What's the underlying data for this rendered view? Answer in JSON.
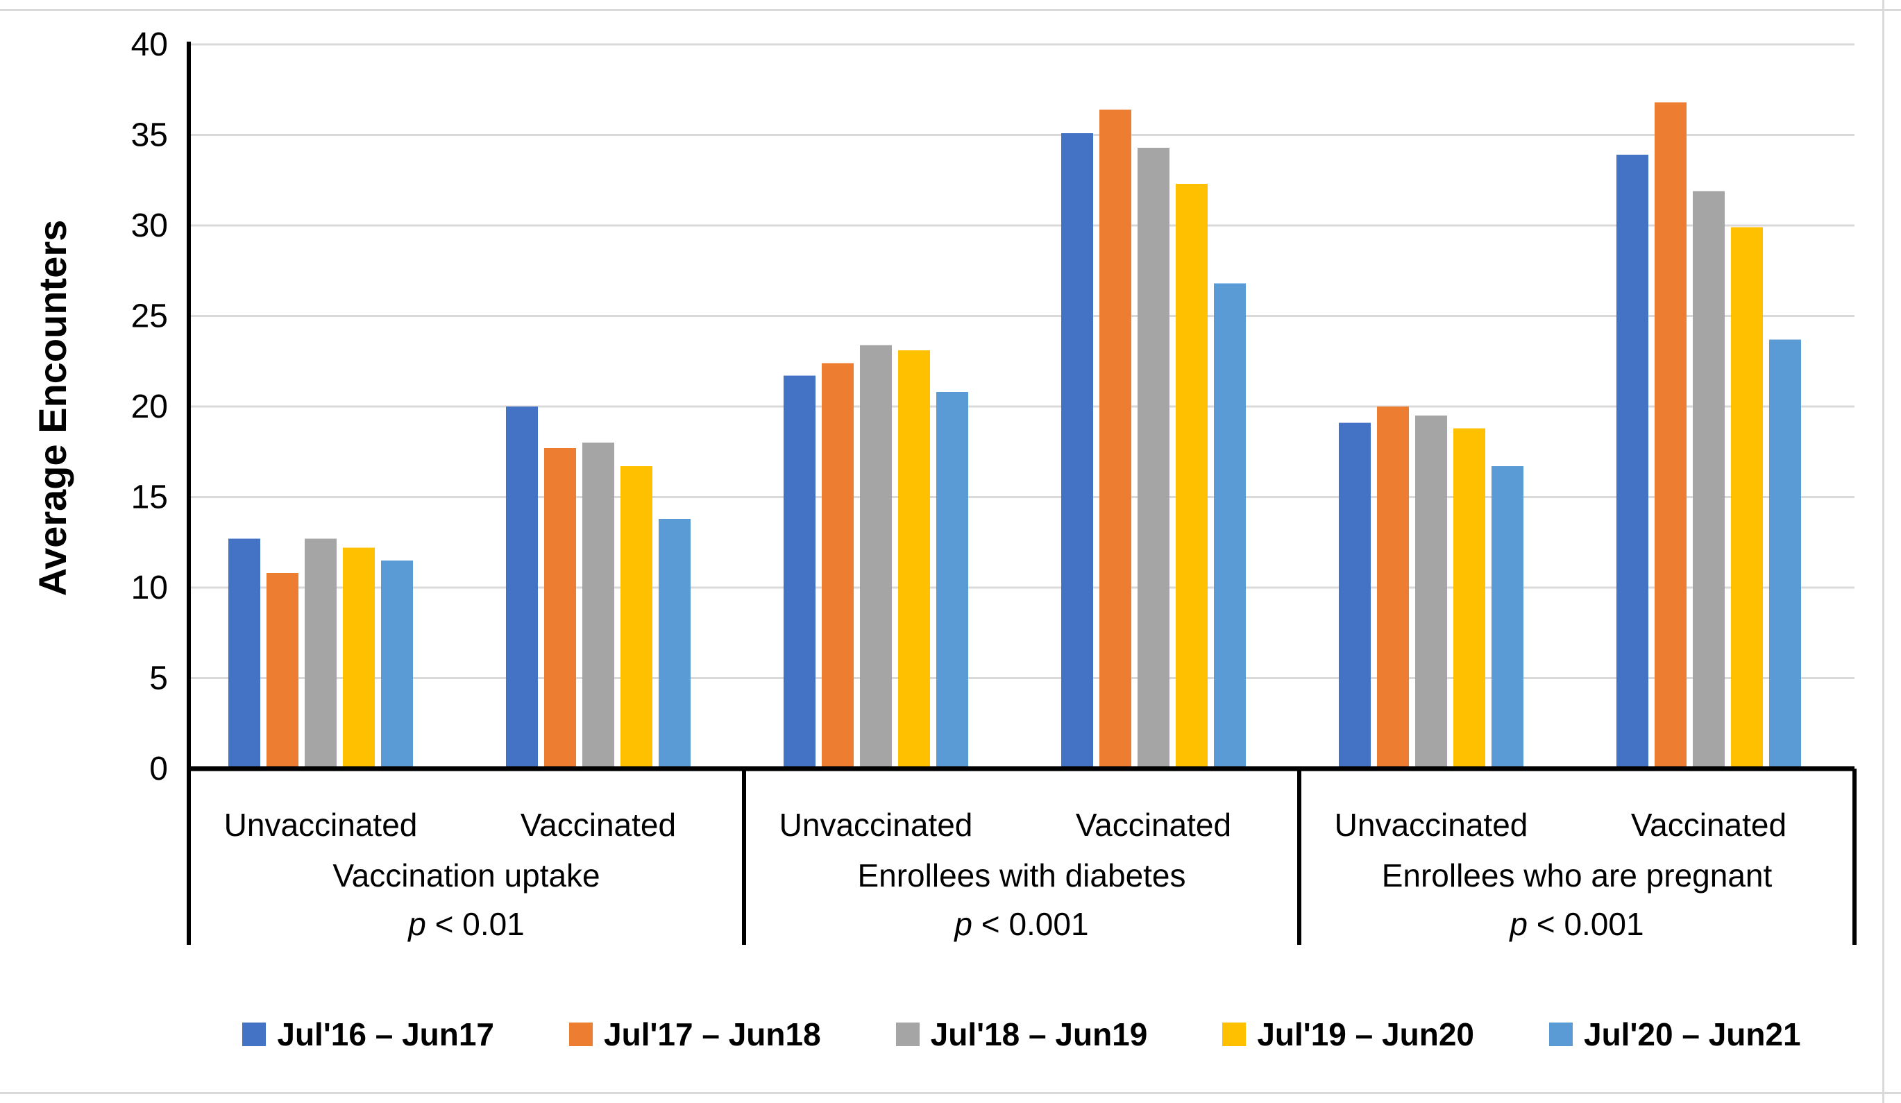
{
  "chart_data": {
    "type": "bar",
    "title": "",
    "ylabel": "Average Encounters",
    "ylim": [
      0,
      40
    ],
    "yticks": [
      0,
      5,
      10,
      15,
      20,
      25,
      30,
      35,
      40
    ],
    "grid": true,
    "legend_position": "bottom",
    "group_order_note": "values arrays are ordered: Vaccination-uptake Unvaccinated, Vaccination-uptake Vaccinated, Diabetes Unvaccinated, Diabetes Vaccinated, Pregnant Unvaccinated, Pregnant Vaccinated",
    "panels": [
      {
        "label": "Vaccination uptake",
        "p": "p < 0.01",
        "categories": [
          "Unvaccinated",
          "Vaccinated"
        ]
      },
      {
        "label": "Enrollees with diabetes",
        "p": "p < 0.001",
        "categories": [
          "Unvaccinated",
          "Vaccinated"
        ]
      },
      {
        "label": "Enrollees who are pregnant",
        "p": "p < 0.001",
        "categories": [
          "Unvaccinated",
          "Vaccinated"
        ]
      }
    ],
    "series": [
      {
        "name": "Jul'16 – Jun17",
        "color": "#4472C4",
        "values": [
          12.7,
          20.0,
          21.7,
          35.1,
          19.1,
          33.9
        ]
      },
      {
        "name": "Jul'17 – Jun18",
        "color": "#ED7D31",
        "values": [
          10.8,
          17.7,
          22.4,
          36.4,
          20.0,
          36.8
        ]
      },
      {
        "name": "Jul'18 – Jun19",
        "color": "#A5A5A5",
        "values": [
          12.7,
          18.0,
          23.4,
          34.3,
          19.5,
          31.9
        ]
      },
      {
        "name": "Jul'19 – Jun20",
        "color": "#FFC000",
        "values": [
          12.2,
          16.7,
          23.1,
          32.3,
          18.8,
          29.9
        ]
      },
      {
        "name": "Jul'20 – Jun21",
        "color": "#5B9BD5",
        "values": [
          11.5,
          13.8,
          20.8,
          26.8,
          16.7,
          23.7
        ]
      }
    ],
    "colors": {
      "gridline": "#D9D9D9",
      "axis": "#000000",
      "text": "#000000"
    }
  }
}
